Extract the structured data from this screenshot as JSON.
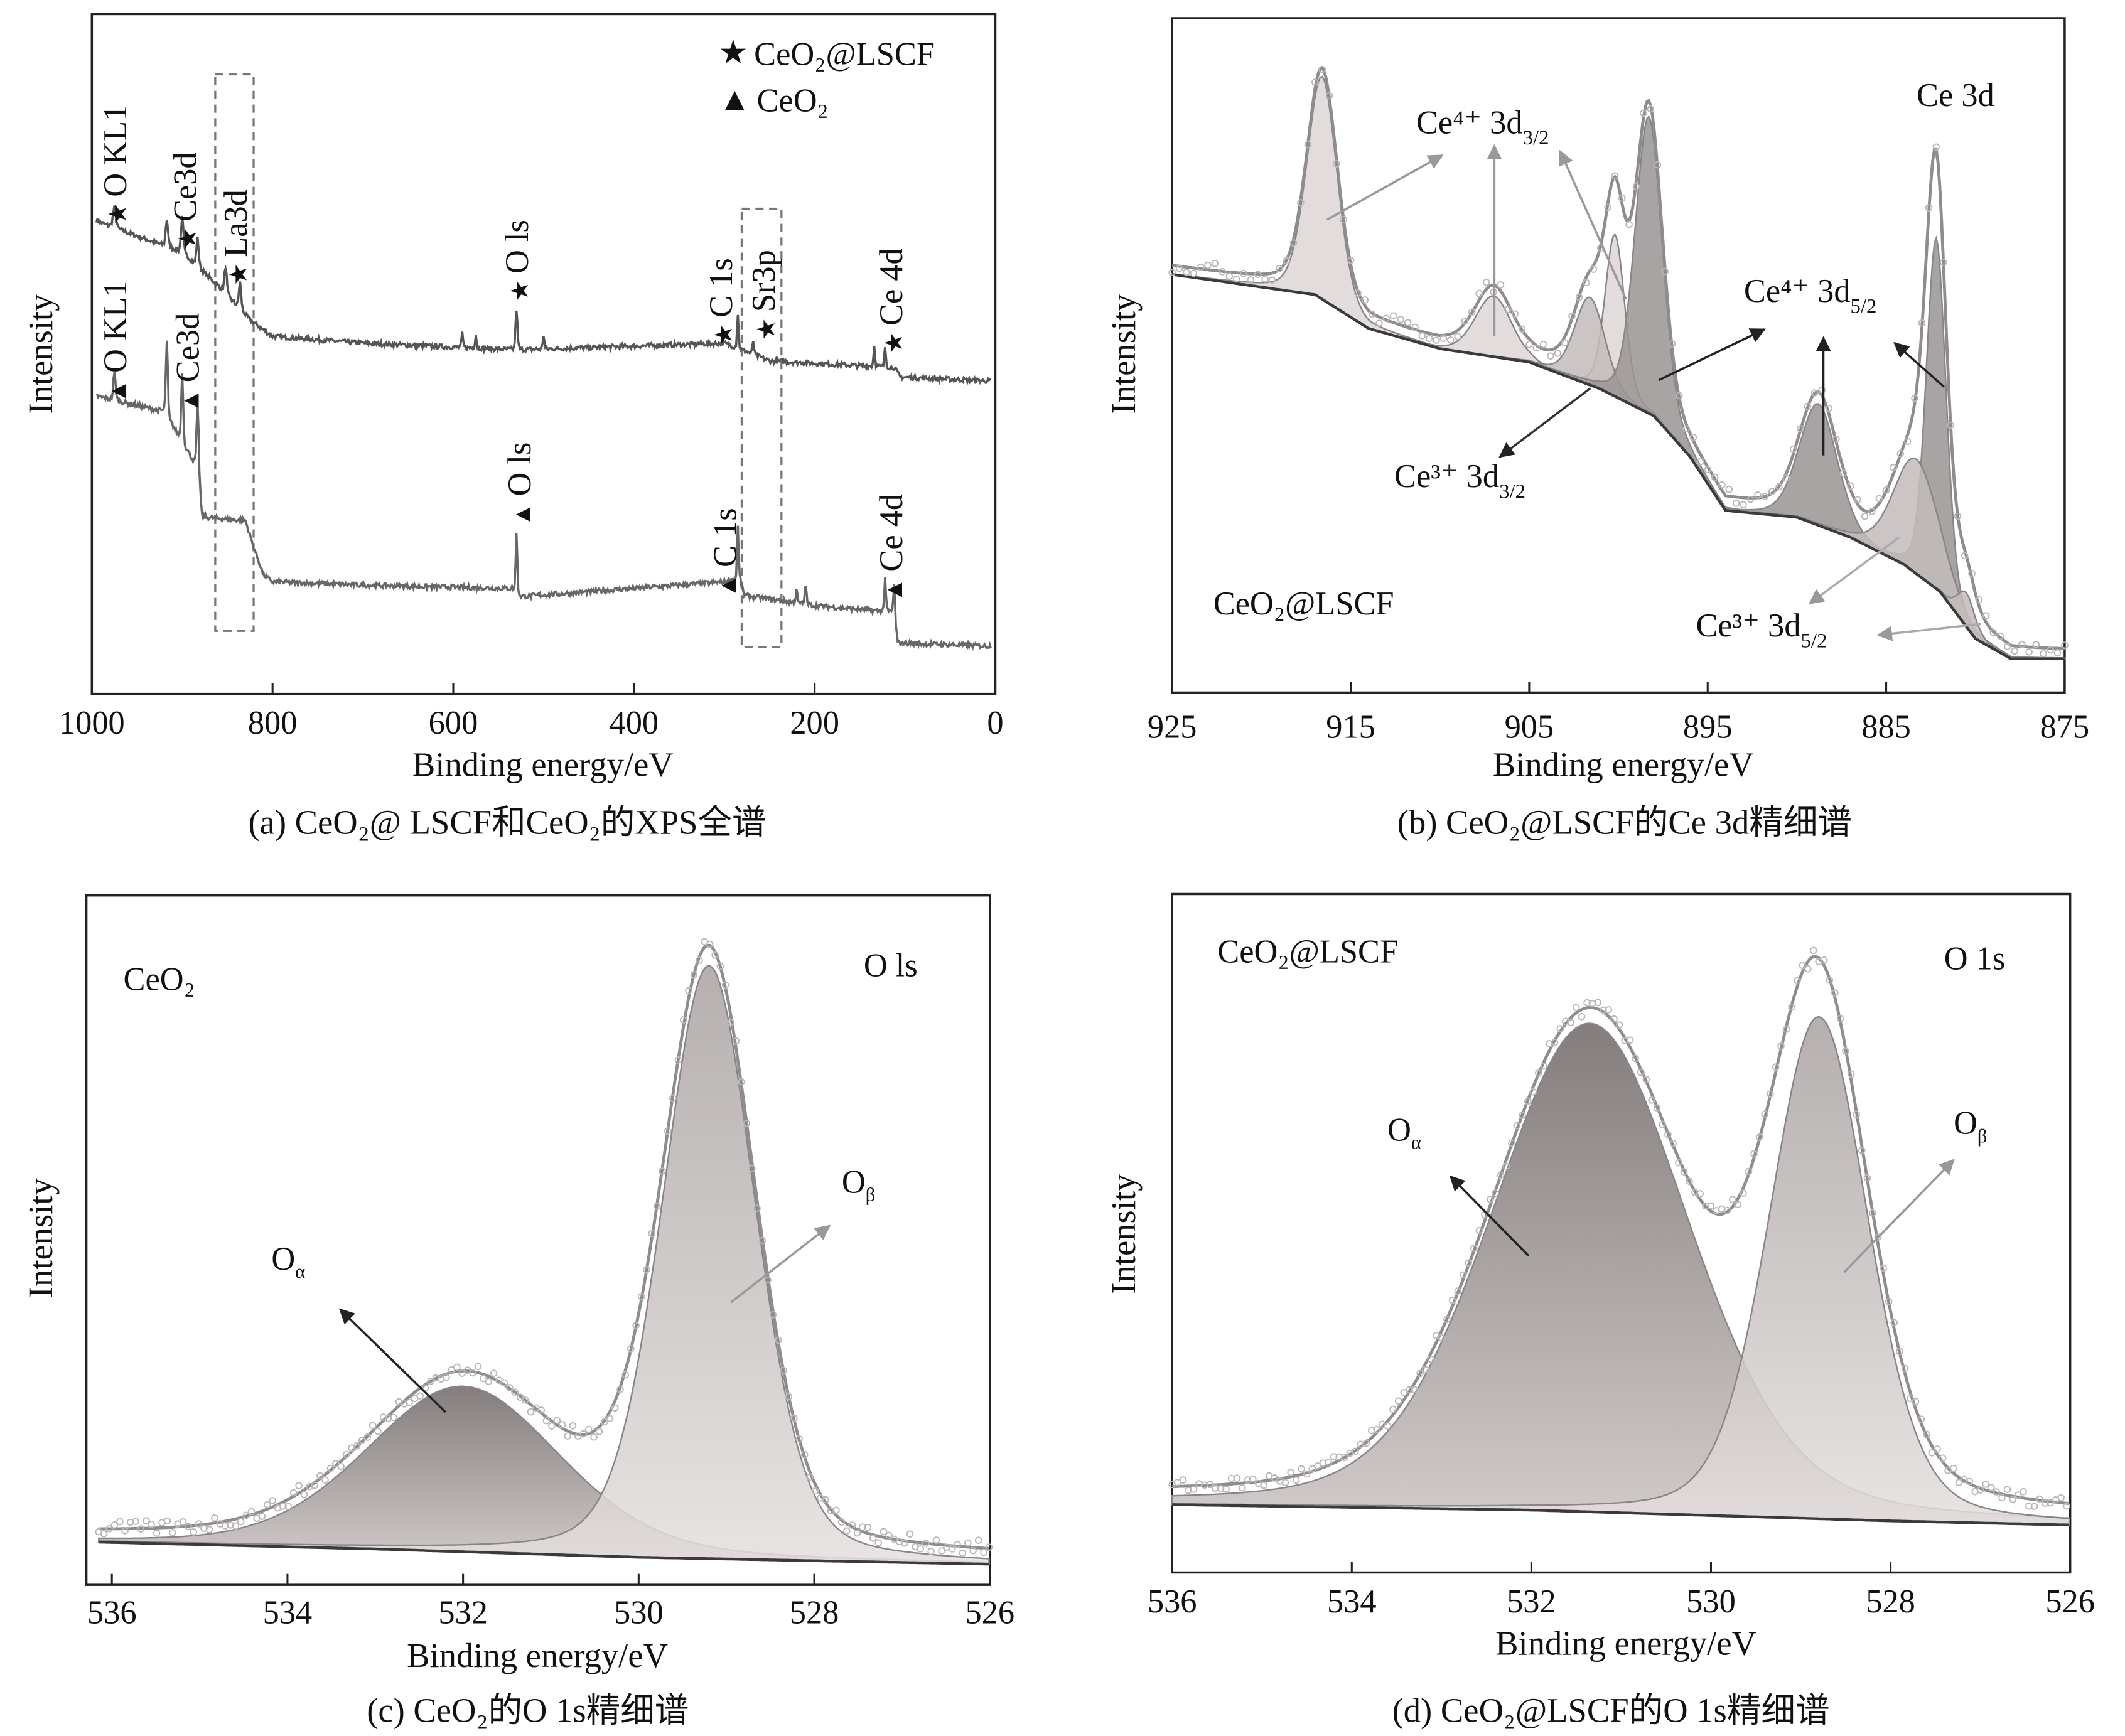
{
  "symbols": {
    "star": "★",
    "triangle": "▲"
  },
  "colors": {
    "line_dark": "#4a4a4a",
    "line_gray": "#8c8c8c",
    "fill_dark": "#8f8a8a",
    "fill_light": "#d6d0cf",
    "label_gray": "#8a8a8a"
  },
  "chart_data": [
    {
      "id": "a",
      "type": "line",
      "caption": "(a) CeO₂@ LSCF和CeO₂的XPS全谱",
      "xlabel": "Binding energy/eV",
      "ylabel": "Intensity",
      "xlim": [
        1000,
        0
      ],
      "xticks": [
        "1000",
        "800",
        "600",
        "400",
        "200",
        "0"
      ],
      "legend": [
        {
          "symbol": "★",
          "label": "CeO₂@LSCF"
        },
        {
          "symbol": "▲",
          "label": "CeO₂"
        }
      ],
      "legend_position": "top-right",
      "series": [
        {
          "name": "CeO₂@LSCF",
          "baseline": [
            [
              1000,
              70
            ],
            [
              985,
              69
            ],
            [
              900,
              65
            ],
            [
              860,
              60
            ],
            [
              825,
              55
            ],
            [
              800,
              52.6
            ],
            [
              700,
              51.6
            ],
            [
              530,
              50.6
            ],
            [
              300,
              51.6
            ],
            [
              250,
              49
            ],
            [
              112,
              48
            ],
            [
              105,
              46.6
            ],
            [
              0,
              46
            ]
          ],
          "peaks": [
            [
              975,
              3,
              4
            ],
            [
              917,
              4,
              3
            ],
            [
              900,
              5,
              3
            ],
            [
              883,
              4,
              3
            ],
            [
              852,
              4,
              3
            ],
            [
              836,
              4,
              3
            ],
            [
              590,
              2,
              2
            ],
            [
              575,
              2,
              2
            ],
            [
              530,
              6,
              2.5
            ],
            [
              500,
              2,
              2
            ],
            [
              285,
              5,
              2
            ],
            [
              268,
              2,
              2
            ],
            [
              134,
              3,
              2
            ],
            [
              122,
              3,
              2
            ]
          ]
        },
        {
          "name": "CeO₂",
          "baseline": [
            [
              1000,
              44
            ],
            [
              985,
              43.5
            ],
            [
              920,
              41.5
            ],
            [
              900,
              37
            ],
            [
              882,
              33
            ],
            [
              878,
              26
            ],
            [
              830,
              25.5
            ],
            [
              822,
              22
            ],
            [
              810,
              17.5
            ],
            [
              800,
              16.5
            ],
            [
              700,
              16
            ],
            [
              535,
              15.5
            ],
            [
              525,
              14.3
            ],
            [
              300,
              16.5
            ],
            [
              283,
              17
            ],
            [
              278,
              14.5
            ],
            [
              200,
              13
            ],
            [
              112,
              12
            ],
            [
              108,
              7.5
            ],
            [
              0,
              7
            ]
          ],
          "peaks": [
            [
              975,
              4,
              3
            ],
            [
              917,
              11,
              2.5
            ],
            [
              900,
              10,
              2.5
            ],
            [
              883,
              9,
              2.5
            ],
            [
              530,
              9,
              2
            ],
            [
              285,
              8,
              1.8
            ],
            [
              220,
              2,
              2
            ],
            [
              210,
              3,
              2
            ],
            [
              122,
              5,
              2
            ],
            [
              112,
              4,
              2
            ]
          ]
        }
      ],
      "annotations": [
        {
          "series": "CeO₂@LSCF",
          "marker": "★",
          "label": "O KL1"
        },
        {
          "series": "CeO₂@LSCF",
          "marker": "★",
          "label": "Ce3d"
        },
        {
          "series": "CeO₂@LSCF",
          "marker": "★",
          "label": "La3d"
        },
        {
          "series": "CeO₂@LSCF",
          "marker": "★",
          "label": "O ls"
        },
        {
          "series": "CeO₂@LSCF",
          "marker": "★",
          "label": "C 1s"
        },
        {
          "series": "CeO₂@LSCF",
          "marker": "★",
          "label": "Sr3p"
        },
        {
          "series": "CeO₂@LSCF",
          "marker": "★",
          "label": "Ce 4d"
        },
        {
          "series": "CeO₂",
          "marker": "▲",
          "label": "O KL1"
        },
        {
          "series": "CeO₂",
          "marker": "▲",
          "label": "Ce3d"
        },
        {
          "series": "CeO₂",
          "marker": "▲",
          "label": "O ls"
        },
        {
          "series": "CeO₂",
          "marker": "▲",
          "label": "C 1s"
        },
        {
          "series": "CeO₂",
          "marker": "▲",
          "label": "Ce 4d"
        }
      ]
    },
    {
      "id": "b",
      "type": "line",
      "caption": "(b) CeO₂@LSCF的Ce 3d精细谱",
      "xlabel": "Binding energy/eV",
      "ylabel": "Intensity",
      "xlim": [
        925,
        875
      ],
      "xticks": [
        "925",
        "915",
        "905",
        "895",
        "885",
        "875"
      ],
      "title": "Ce 3d",
      "sample": "CeO₂@LSCF",
      "background": [
        [
          925,
          62
        ],
        [
          917,
          59
        ],
        [
          914,
          54
        ],
        [
          910,
          51
        ],
        [
          905,
          49
        ],
        [
          901,
          45
        ],
        [
          898,
          41
        ],
        [
          896,
          35
        ],
        [
          894,
          27
        ],
        [
          890,
          26
        ],
        [
          887,
          23
        ],
        [
          884,
          19
        ],
        [
          882,
          15
        ],
        [
          880,
          8
        ],
        [
          878,
          5
        ],
        [
          875,
          5
        ]
      ],
      "components": [
        {
          "center": 916.6,
          "height": 33,
          "fwhm": 2.0,
          "group": "Ce⁴⁺ 3d3/2"
        },
        {
          "center": 907.0,
          "height": 9,
          "fwhm": 2.4,
          "group": "Ce⁴⁺ 3d3/2"
        },
        {
          "center": 900.2,
          "height": 24,
          "fwhm": 1.3,
          "group": "Ce⁴⁺ 3d3/2"
        },
        {
          "center": 901.6,
          "height": 13,
          "fwhm": 2.0,
          "group": "Ce³⁺ 3d3/2"
        },
        {
          "center": 898.3,
          "height": 44,
          "fwhm": 1.8,
          "group": "Ce⁴⁺ 3d5/2"
        },
        {
          "center": 888.8,
          "height": 18,
          "fwhm": 2.5,
          "group": "Ce⁴⁺ 3d5/2"
        },
        {
          "center": 882.2,
          "height": 52,
          "fwhm": 1.3,
          "group": "Ce⁴⁺ 3d5/2"
        },
        {
          "center": 883.3,
          "height": 17,
          "fwhm": 3.0,
          "group": "Ce³⁺ 3d5/2"
        },
        {
          "center": 880.5,
          "height": 5,
          "fwhm": 1.2,
          "group": "Ce³⁺ 3d5/2"
        }
      ],
      "labels": [
        {
          "base": "Ce⁴⁺ 3d",
          "sub": "3/2"
        },
        {
          "base": "Ce⁴⁺ 3d",
          "sub": "5/2"
        },
        {
          "base": "Ce³⁺ 3d",
          "sub": "3/2"
        },
        {
          "base": "Ce³⁺ 3d",
          "sub": "5/2"
        }
      ]
    },
    {
      "id": "c",
      "type": "line",
      "caption": "(c) CeO₂的O 1s精细谱",
      "xlabel": "Binding energy/eV",
      "ylabel": "Intensity",
      "xlim": [
        536.15,
        526
      ],
      "xticks": [
        "536",
        "534",
        "532",
        "530",
        "528",
        "526"
      ],
      "title": "O ls",
      "sample": "CeO₂",
      "background": [
        [
          536.15,
          6.2
        ],
        [
          533,
          5.2
        ],
        [
          530,
          4
        ],
        [
          526,
          3
        ]
      ],
      "components": [
        {
          "center": 532.0,
          "height": 24,
          "fwhm": 2.6,
          "label": {
            "base": "O",
            "sub": "α"
          }
        },
        {
          "center": 529.2,
          "height": 86,
          "fwhm": 1.25,
          "label": {
            "base": "O",
            "sub": "β"
          }
        }
      ]
    },
    {
      "id": "d",
      "type": "line",
      "caption": "(d) CeO₂@LSCF的O 1s精细谱",
      "xlabel": "Binding energy/eV",
      "ylabel": "Intensity",
      "xlim": [
        536,
        526
      ],
      "xticks": [
        "536",
        "534",
        "532",
        "530",
        "528",
        "526"
      ],
      "title": "O 1s",
      "sample": "CeO₂@LSCF",
      "background": [
        [
          536,
          10
        ],
        [
          532,
          9.2
        ],
        [
          528,
          7.6
        ],
        [
          526,
          7
        ]
      ],
      "components": [
        {
          "center": 531.35,
          "height": 72,
          "fwhm": 2.6,
          "label": {
            "base": "O",
            "sub": "α"
          }
        },
        {
          "center": 528.8,
          "height": 74,
          "fwhm": 1.3,
          "label": {
            "base": "O",
            "sub": "β"
          }
        }
      ]
    }
  ]
}
